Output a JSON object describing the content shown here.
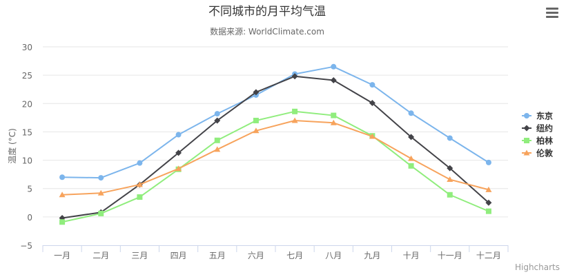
{
  "chart_data": {
    "type": "line",
    "title": "不同城市的月平均气温",
    "subtitle": "数据来源: WorldClimate.com",
    "xlabel": "",
    "ylabel": "温度 (°C)",
    "categories": [
      "一月",
      "二月",
      "三月",
      "四月",
      "五月",
      "六月",
      "七月",
      "八月",
      "九月",
      "十月",
      "十一月",
      "十二月"
    ],
    "ylim": [
      -5,
      30
    ],
    "yticks": [
      30,
      25,
      20,
      15,
      10,
      5,
      0,
      -5
    ],
    "ytick_labels": [
      "30",
      "25",
      "20",
      "15",
      "10",
      "5",
      "0",
      "−5"
    ],
    "grid": true,
    "legend_position": "right",
    "series": [
      {
        "name": "东京",
        "color": "#7cb5ec",
        "marker": "circle",
        "values": [
          7.0,
          6.9,
          9.5,
          14.5,
          18.2,
          21.5,
          25.2,
          26.5,
          23.3,
          18.3,
          13.9,
          9.6
        ]
      },
      {
        "name": "纽约",
        "color": "#434348",
        "marker": "diamond",
        "values": [
          -0.2,
          0.8,
          5.7,
          11.3,
          17.0,
          22.0,
          24.8,
          24.1,
          20.1,
          14.1,
          8.6,
          2.5
        ]
      },
      {
        "name": "柏林",
        "color": "#90ed7d",
        "marker": "square",
        "values": [
          -0.9,
          0.6,
          3.5,
          8.4,
          13.5,
          17.0,
          18.6,
          17.9,
          14.3,
          9.0,
          3.9,
          1.0
        ]
      },
      {
        "name": "伦敦",
        "color": "#f7a35c",
        "marker": "triangle",
        "values": [
          3.9,
          4.2,
          5.7,
          8.5,
          11.9,
          15.2,
          17.0,
          16.6,
          14.2,
          10.3,
          6.6,
          4.8
        ]
      }
    ]
  },
  "toolbar": {
    "menu_icon": "hamburger-menu-icon"
  },
  "credits": {
    "label": "Highcharts"
  }
}
